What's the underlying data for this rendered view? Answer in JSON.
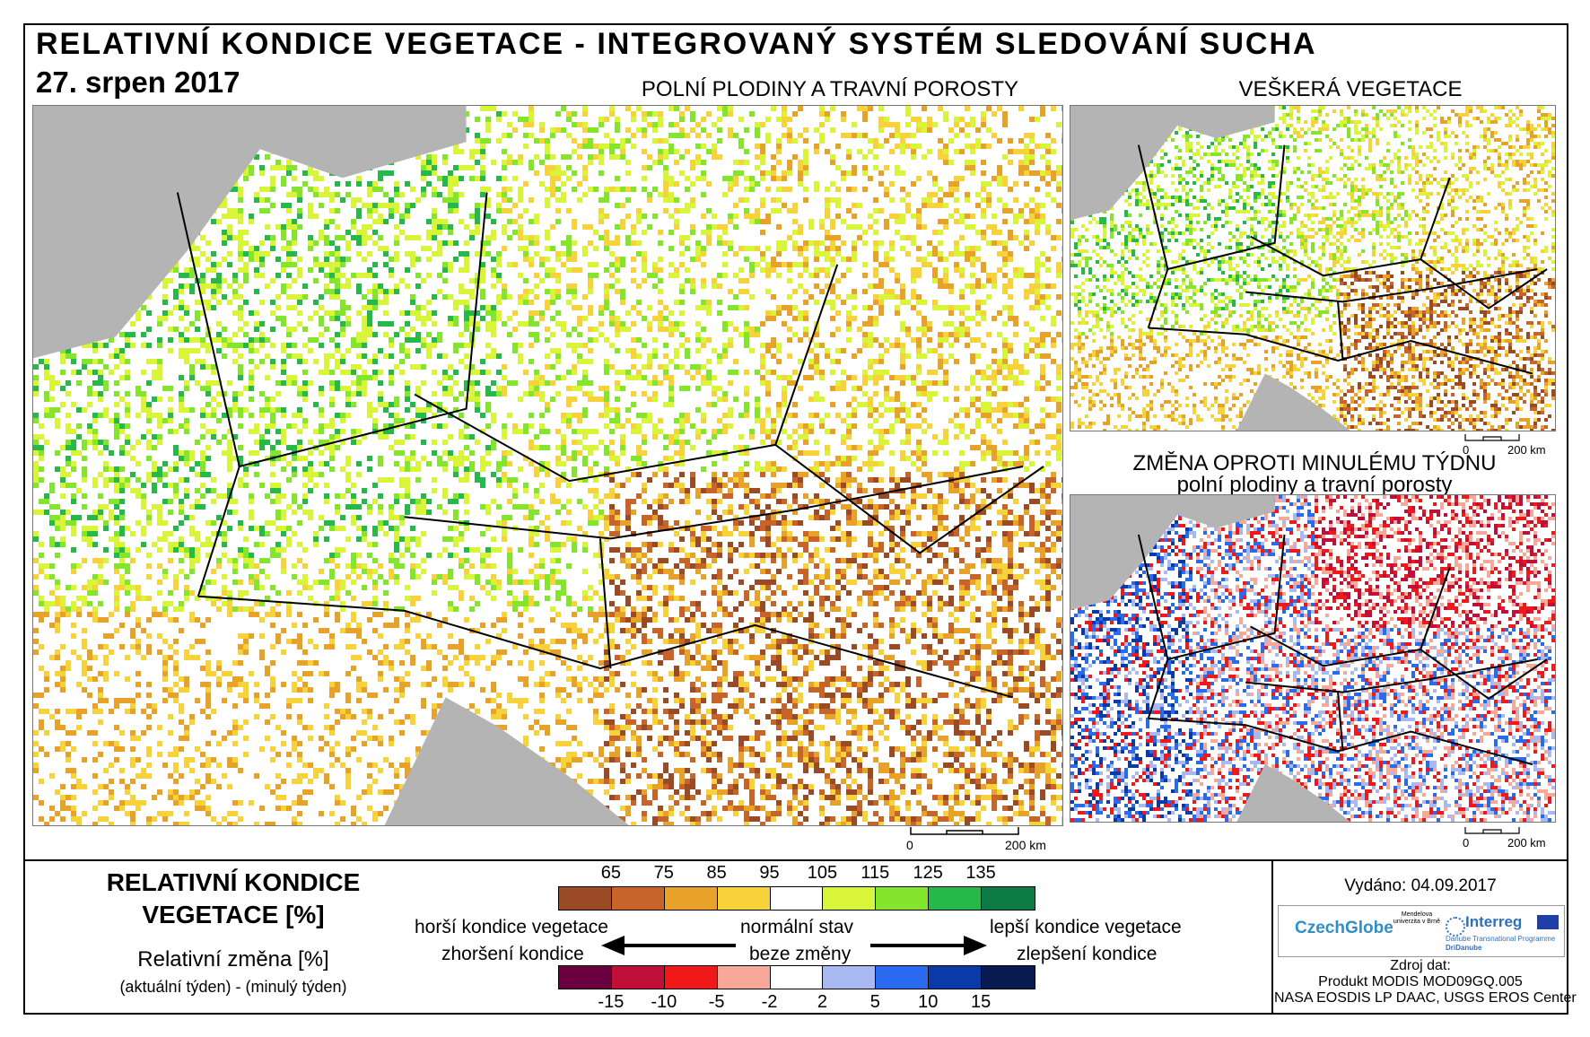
{
  "header": {
    "title": "RELATIVNÍ KONDICE VEGETACE - INTEGROVANÝ SYSTÉM SLEDOVÁNÍ SUCHA",
    "date": "27. srpen 2017"
  },
  "maps": {
    "main_title": "POLNÍ PLODINY A TRAVNÍ POROSTY",
    "all_veg_title": "VEŠKERÁ VEGETACE",
    "change_title_1": "ZMĚNA OPROTI MINULÉMU TÝDNU",
    "change_title_2": "polní plodiny a travní porosty",
    "scale_zero": "0",
    "scale_main": "200 km",
    "scale_small": "200 km"
  },
  "legend": {
    "title_1": "RELATIVNÍ KONDICE",
    "title_2": "VEGETACE [%]",
    "sub_1": "Relativní změna [%]",
    "sub_2": "(aktuální týden) - (minulý týden)",
    "top_ticks": [
      "65",
      "75",
      "85",
      "95",
      "105",
      "115",
      "125",
      "135"
    ],
    "top_colors": [
      "#9a4a25",
      "#c8642a",
      "#e8a22a",
      "#f7d23a",
      "#ffffff",
      "#d8f53a",
      "#84e62c",
      "#27b84a",
      "#0e7a45"
    ],
    "bottom_ticks": [
      "-15",
      "-10",
      "-5",
      "-2",
      "2",
      "5",
      "10",
      "15"
    ],
    "bottom_colors": [
      "#6a0040",
      "#c0103a",
      "#f01818",
      "#f8a898",
      "#ffffff",
      "#a8b8f0",
      "#2a6af0",
      "#0a3aa8",
      "#081a50"
    ],
    "worse": "horší kondice vegetace",
    "normal": "normální stav",
    "better": "lepší kondice vegetace",
    "worsening": "zhoršení kondice",
    "no_change": "beze změny",
    "improving": "zlepšení kondice"
  },
  "info": {
    "issued": "Vydáno: 04.09.2017",
    "source_label": "Zdroj dat:",
    "source_1": "Produkt MODIS MOD09GQ.005",
    "source_2": "NASA EOSDIS LP DAAC, USGS EROS Center",
    "logo_czechglobe": "CzechGlobe",
    "logo_mendel": "Mendelova univerzita v Brně",
    "logo_interreg": "Interreg",
    "logo_interreg_sub": "Danube Transnational Programme",
    "logo_interreg_sub2": "DriDanube"
  }
}
